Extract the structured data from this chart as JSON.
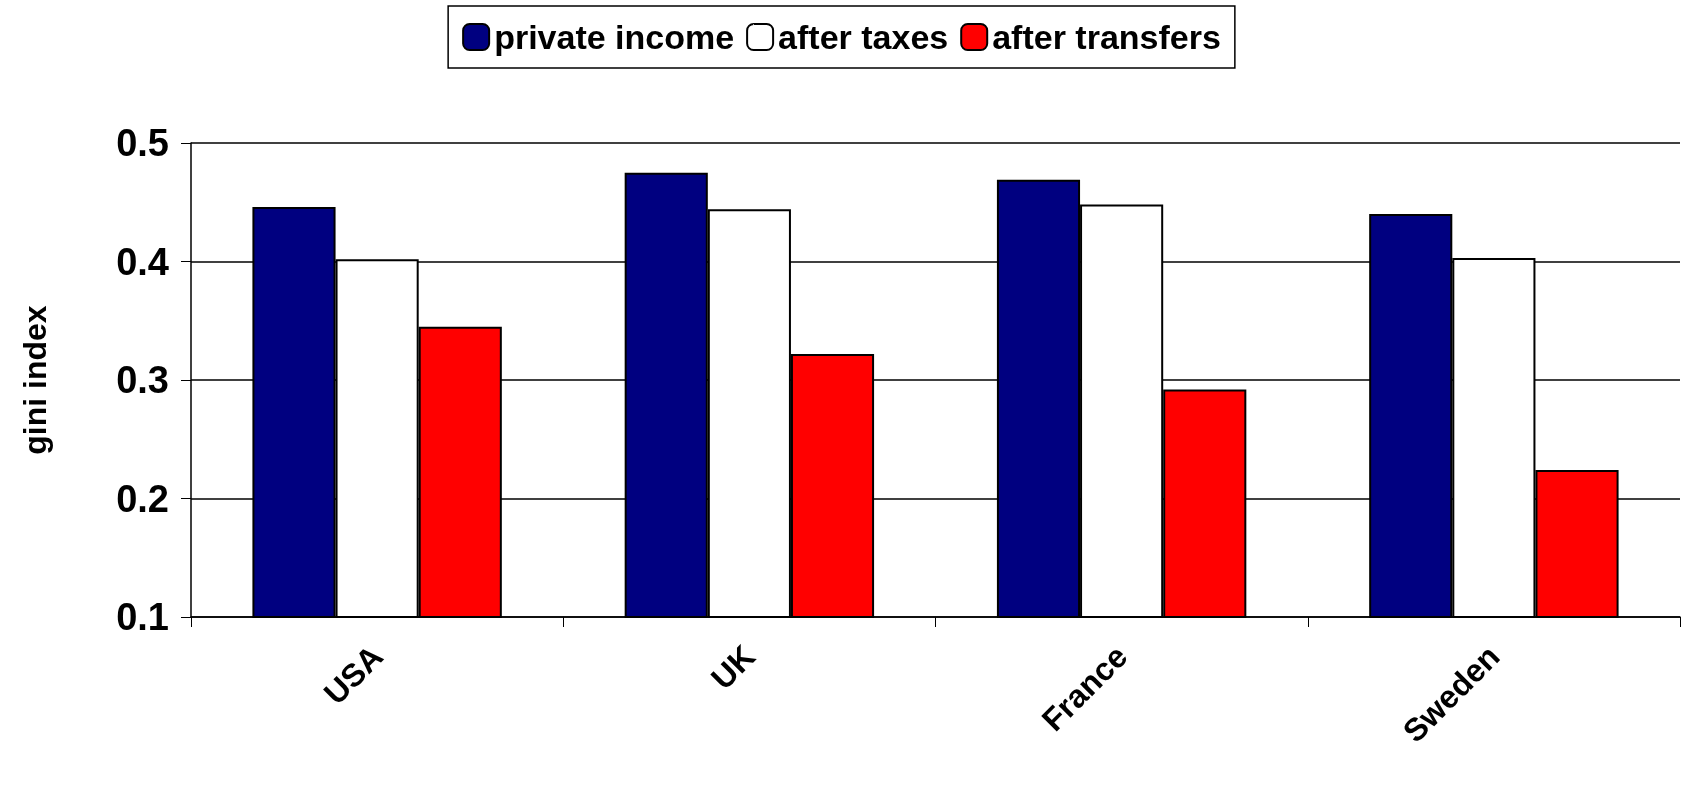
{
  "chart_data": {
    "type": "bar",
    "ylabel": "gini index",
    "categories": [
      "USA",
      "UK",
      "France",
      "Sweden"
    ],
    "series": [
      {
        "name": "private income",
        "color": "#000080",
        "values": [
          0.446,
          0.475,
          0.469,
          0.44
        ]
      },
      {
        "name": "after taxes",
        "color": "#ffffff",
        "values": [
          0.402,
          0.444,
          0.448,
          0.403
        ]
      },
      {
        "name": "after transfers",
        "color": "#ff0000",
        "values": [
          0.345,
          0.322,
          0.292,
          0.224
        ]
      }
    ],
    "ylim": [
      0.1,
      0.5
    ],
    "yticks": [
      0.1,
      0.2,
      0.3,
      0.4,
      0.5
    ],
    "grid": "y",
    "legend": "top"
  }
}
